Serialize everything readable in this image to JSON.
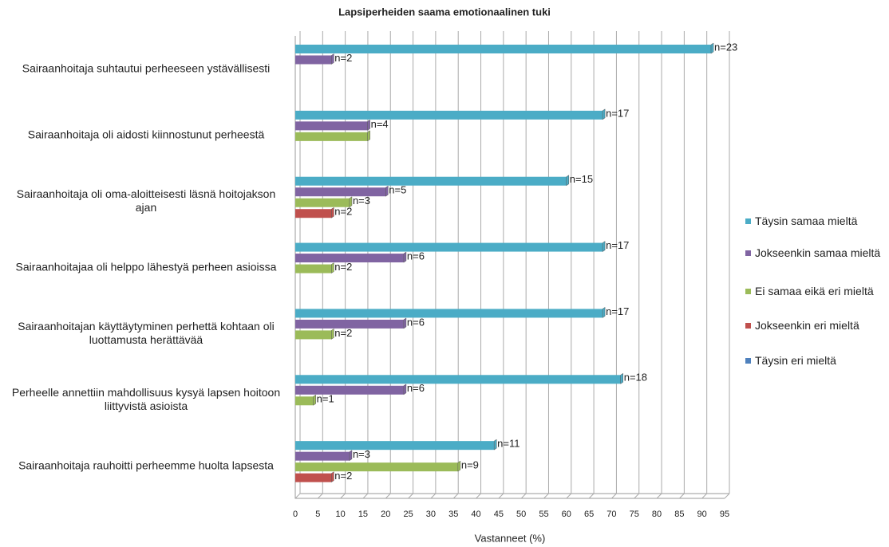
{
  "chart_data": {
    "type": "hbar",
    "title": "Lapsiperheiden saama emotionaalinen tuki",
    "x_label": "Vastanneet (%)",
    "categories": [
      "Sairaanhoitaja suhtautui perheeseen ystävällisesti",
      "Sairaanhoitaja oli aidosti kiinnostunut perheestä",
      "Sairaanhoitaja oli oma-aloitteisesti läsnä hoitojakson ajan",
      "Sairaanhoitajaa oli helppo lähestyä perheen asioissa",
      "Sairaanhoitajan käyttäytyminen perhettä kohtaan oli luottamusta herättävää",
      "Perheelle annettiin mahdollisuus kysyä lapsen hoitoon liittyvistä asioista",
      "Sairaanhoitaja rauhoitti perheemme huolta lapsesta"
    ],
    "series": [
      {
        "name": "Täysin samaa mieltä",
        "color": "#4bacc6",
        "values": [
          92,
          68,
          60,
          68,
          68,
          72,
          44
        ],
        "value_labels": [
          "n=23",
          "n=17",
          "n=15",
          "n=17",
          "n=17",
          "n=18",
          "n=11"
        ]
      },
      {
        "name": "Jokseenkin samaa mieltä",
        "color": "#8064a2",
        "values": [
          8,
          16,
          20,
          24,
          24,
          24,
          12
        ],
        "value_labels": [
          "n=2",
          "n=4",
          "n=5",
          "n=6",
          "n=6",
          "n=6",
          "n=3"
        ]
      },
      {
        "name": "Ei samaa eikä eri mieltä",
        "color": "#9bbb59",
        "values": [
          0,
          16,
          12,
          8,
          8,
          4,
          36
        ],
        "value_labels": [
          null,
          null,
          "n=3",
          "n=2",
          "n=2",
          "n=1",
          "n=9"
        ]
      },
      {
        "name": "Jokseenkin eri mieltä",
        "color": "#c0504d",
        "values": [
          0,
          0,
          8,
          0,
          0,
          0,
          8
        ],
        "value_labels": [
          null,
          null,
          "n=2",
          null,
          null,
          null,
          "n=2"
        ]
      },
      {
        "name": "Täysin eri mieltä",
        "color": "#4f81bd",
        "values": [
          0,
          0,
          0,
          0,
          0,
          0,
          0
        ],
        "value_labels": [
          null,
          null,
          null,
          null,
          null,
          null,
          null
        ]
      }
    ],
    "xlim": [
      0,
      95
    ],
    "xticks": [
      0,
      5,
      10,
      15,
      20,
      25,
      30,
      35,
      40,
      45,
      50,
      55,
      60,
      65,
      70,
      75,
      80,
      85,
      90,
      95
    ],
    "grid": true
  }
}
